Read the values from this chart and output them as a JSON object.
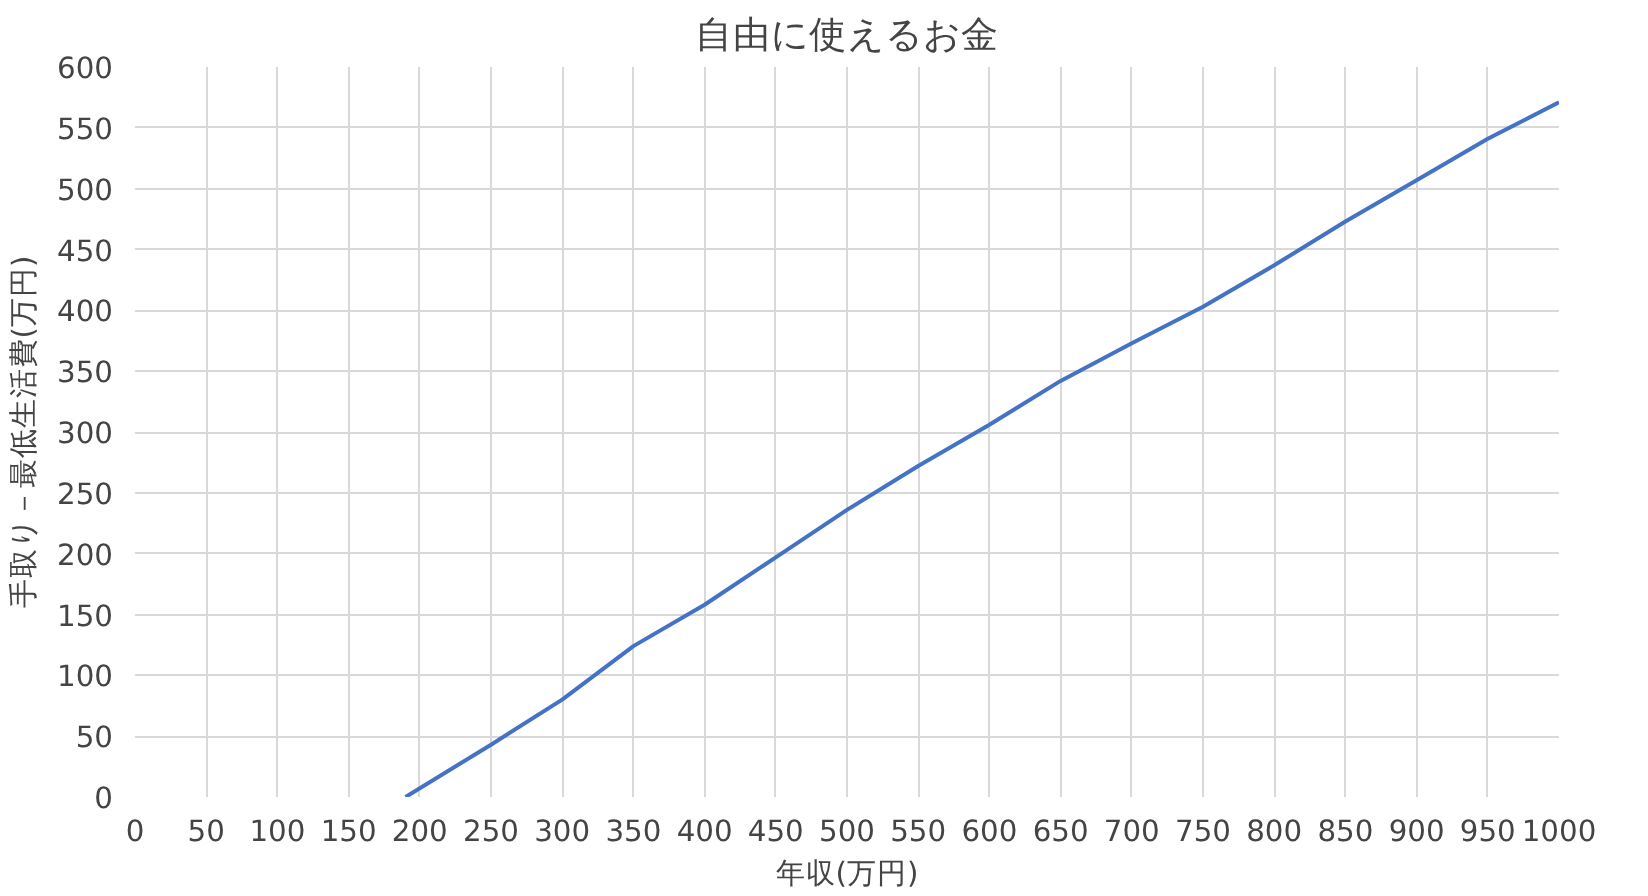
{
  "chart_data": {
    "type": "line",
    "title": "自由に使えるお金",
    "xlabel": "年収(万円)",
    "ylabel": "手取り－最低生活費(万円)",
    "x": [
      190,
      250,
      300,
      350,
      400,
      450,
      500,
      550,
      600,
      650,
      700,
      750,
      800,
      850,
      900,
      950,
      1000
    ],
    "series": [
      {
        "color": "#4472c4",
        "values": [
          0,
          43,
          80,
          124,
          158,
          197,
          236,
          272,
          306,
          342,
          373,
          403,
          437,
          473,
          507,
          541,
          571
        ]
      }
    ],
    "xlim": [
      0,
      1000
    ],
    "xticks": [
      0,
      50,
      100,
      150,
      200,
      250,
      300,
      350,
      400,
      450,
      500,
      550,
      600,
      650,
      700,
      750,
      800,
      850,
      900,
      950,
      1000
    ],
    "ylim": [
      0,
      600
    ],
    "yticks": [
      0,
      50,
      100,
      150,
      200,
      250,
      300,
      350,
      400,
      450,
      500,
      550,
      600
    ],
    "grid": true,
    "marker": "none",
    "line_style": "solid"
  }
}
